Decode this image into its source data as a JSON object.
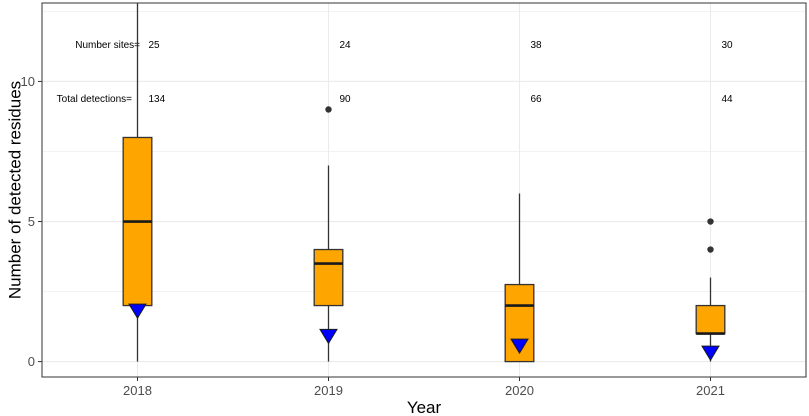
{
  "chart_data": {
    "type": "box",
    "xlabel": "Year",
    "ylabel": "Number of detected residues",
    "categories": [
      "2018",
      "2019",
      "2020",
      "2021"
    ],
    "ylim": [
      -0.55,
      12.8
    ],
    "yticks": [
      0,
      5,
      10
    ],
    "grid": true,
    "boxes": [
      {
        "category": "2018",
        "whisker_low": 0,
        "q1": 2,
        "median": 5,
        "q3": 8,
        "whisker_high": 12.8,
        "outliers": [],
        "mean": 1.8
      },
      {
        "category": "2019",
        "whisker_low": 0,
        "q1": 2,
        "median": 3.5,
        "q3": 4,
        "whisker_high": 7,
        "outliers": [
          9
        ],
        "mean": 0.9
      },
      {
        "category": "2020",
        "whisker_low": 0,
        "q1": 0,
        "median": 2,
        "q3": 2.75,
        "whisker_high": 6,
        "outliers": [],
        "mean": 0.55
      },
      {
        "category": "2021",
        "whisker_low": 0,
        "q1": 1,
        "median": 1,
        "q3": 2,
        "whisker_high": 3,
        "outliers": [
          4,
          5
        ],
        "mean": 0.3
      }
    ],
    "annotations": {
      "number_sites_label": "Number sites=",
      "total_detections_label": "Total detections=",
      "number_sites": [
        "25",
        "24",
        "38",
        "30"
      ],
      "total_detections": [
        "134",
        "90",
        "66",
        "44"
      ]
    },
    "colors": {
      "box_fill": "#FFA500",
      "mean_marker": "#0000FF",
      "outlier": "#333333",
      "grid": "#EBEBEB",
      "panel_border": "#333333"
    }
  }
}
